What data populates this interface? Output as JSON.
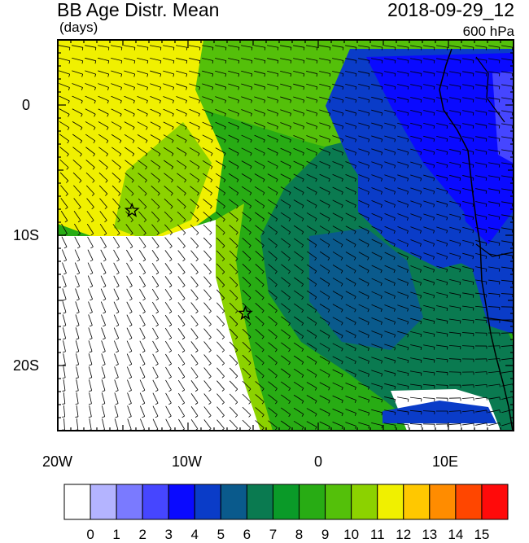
{
  "title": "BB Age Distr. Mean",
  "units": "(days)",
  "datetime": "2018-09-29_12",
  "level": "600 hPa",
  "map": {
    "lon_range": [
      -20,
      15
    ],
    "lat_range": [
      -25,
      5
    ],
    "x_ticks": [
      "20W",
      "10W",
      "0",
      "10E"
    ],
    "y_ticks": [
      "0",
      "10S",
      "20S"
    ],
    "markers": [
      {
        "name": "star",
        "lon": -14.3,
        "lat": -8.1
      },
      {
        "name": "star",
        "lon": -5.6,
        "lat": -16.0
      }
    ]
  },
  "colorbar": {
    "labels": [
      "0",
      "1",
      "2",
      "3",
      "4",
      "5",
      "6",
      "7",
      "8",
      "9",
      "10",
      "11",
      "12",
      "13",
      "14",
      "15"
    ],
    "colors": [
      "#ffffff",
      "#b4b4ff",
      "#7a7aff",
      "#4646ff",
      "#0a0aff",
      "#0a3cc8",
      "#0a5a8c",
      "#0a7a50",
      "#0a9a28",
      "#28ac14",
      "#54c00a",
      "#8cd200",
      "#f0f000",
      "#ffc800",
      "#ff8c00",
      "#ff4600",
      "#ff0a0a"
    ]
  }
}
